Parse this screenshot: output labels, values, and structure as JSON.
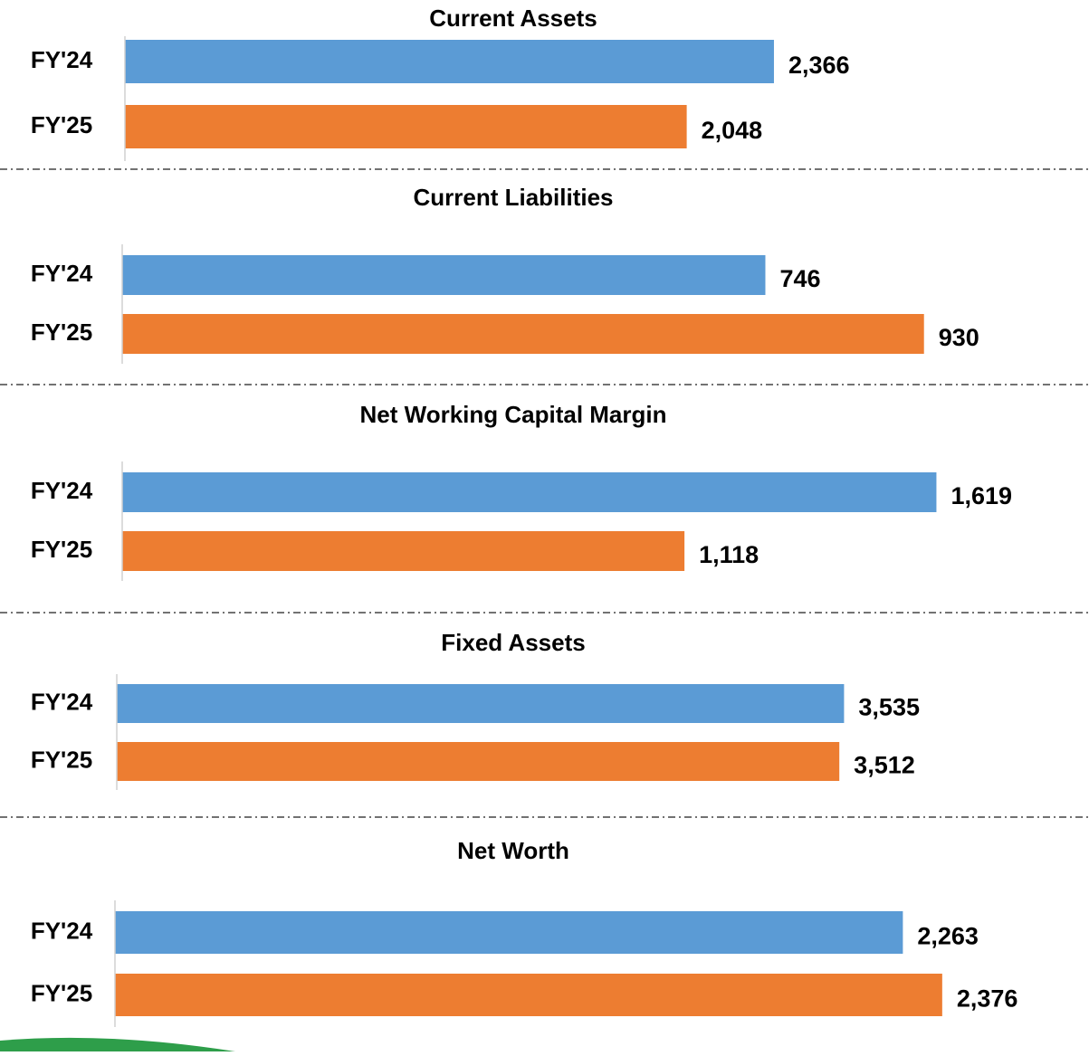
{
  "chart_data": [
    {
      "type": "bar",
      "title": "Current Assets",
      "categories": [
        "FY'24",
        "FY'25"
      ],
      "values": [
        2366,
        2048
      ],
      "value_labels": [
        "2,366",
        "2,048"
      ],
      "colors": [
        "#5b9bd5",
        "#ed7d31"
      ],
      "xlim": [
        0,
        3300
      ]
    },
    {
      "type": "bar",
      "title": "Current Liabilities",
      "categories": [
        "FY'24",
        "FY'25"
      ],
      "values": [
        746,
        930
      ],
      "value_labels": [
        "746",
        "930"
      ],
      "colors": [
        "#5b9bd5",
        "#ed7d31"
      ],
      "xlim": [
        0,
        1050
      ]
    },
    {
      "type": "bar",
      "title": "Net Working Capital Margin",
      "categories": [
        "FY'24",
        "FY'25"
      ],
      "values": [
        1619,
        1118
      ],
      "value_labels": [
        "1,619",
        "1,118"
      ],
      "colors": [
        "#5b9bd5",
        "#ed7d31"
      ],
      "xlim": [
        0,
        1800
      ]
    },
    {
      "type": "bar",
      "title": "Fixed Assets",
      "categories": [
        "FY'24",
        "FY'25"
      ],
      "values": [
        3535,
        3512
      ],
      "value_labels": [
        "3,535",
        "3,512"
      ],
      "colors": [
        "#5b9bd5",
        "#ed7d31"
      ],
      "xlim": [
        0,
        4400
      ]
    },
    {
      "type": "bar",
      "title": "Net Worth",
      "categories": [
        "FY'24",
        "FY'25"
      ],
      "values": [
        2263,
        2376
      ],
      "value_labels": [
        "2,263",
        "2,376"
      ],
      "colors": [
        "#5b9bd5",
        "#ed7d31"
      ],
      "xlim": [
        0,
        2600
      ]
    }
  ]
}
